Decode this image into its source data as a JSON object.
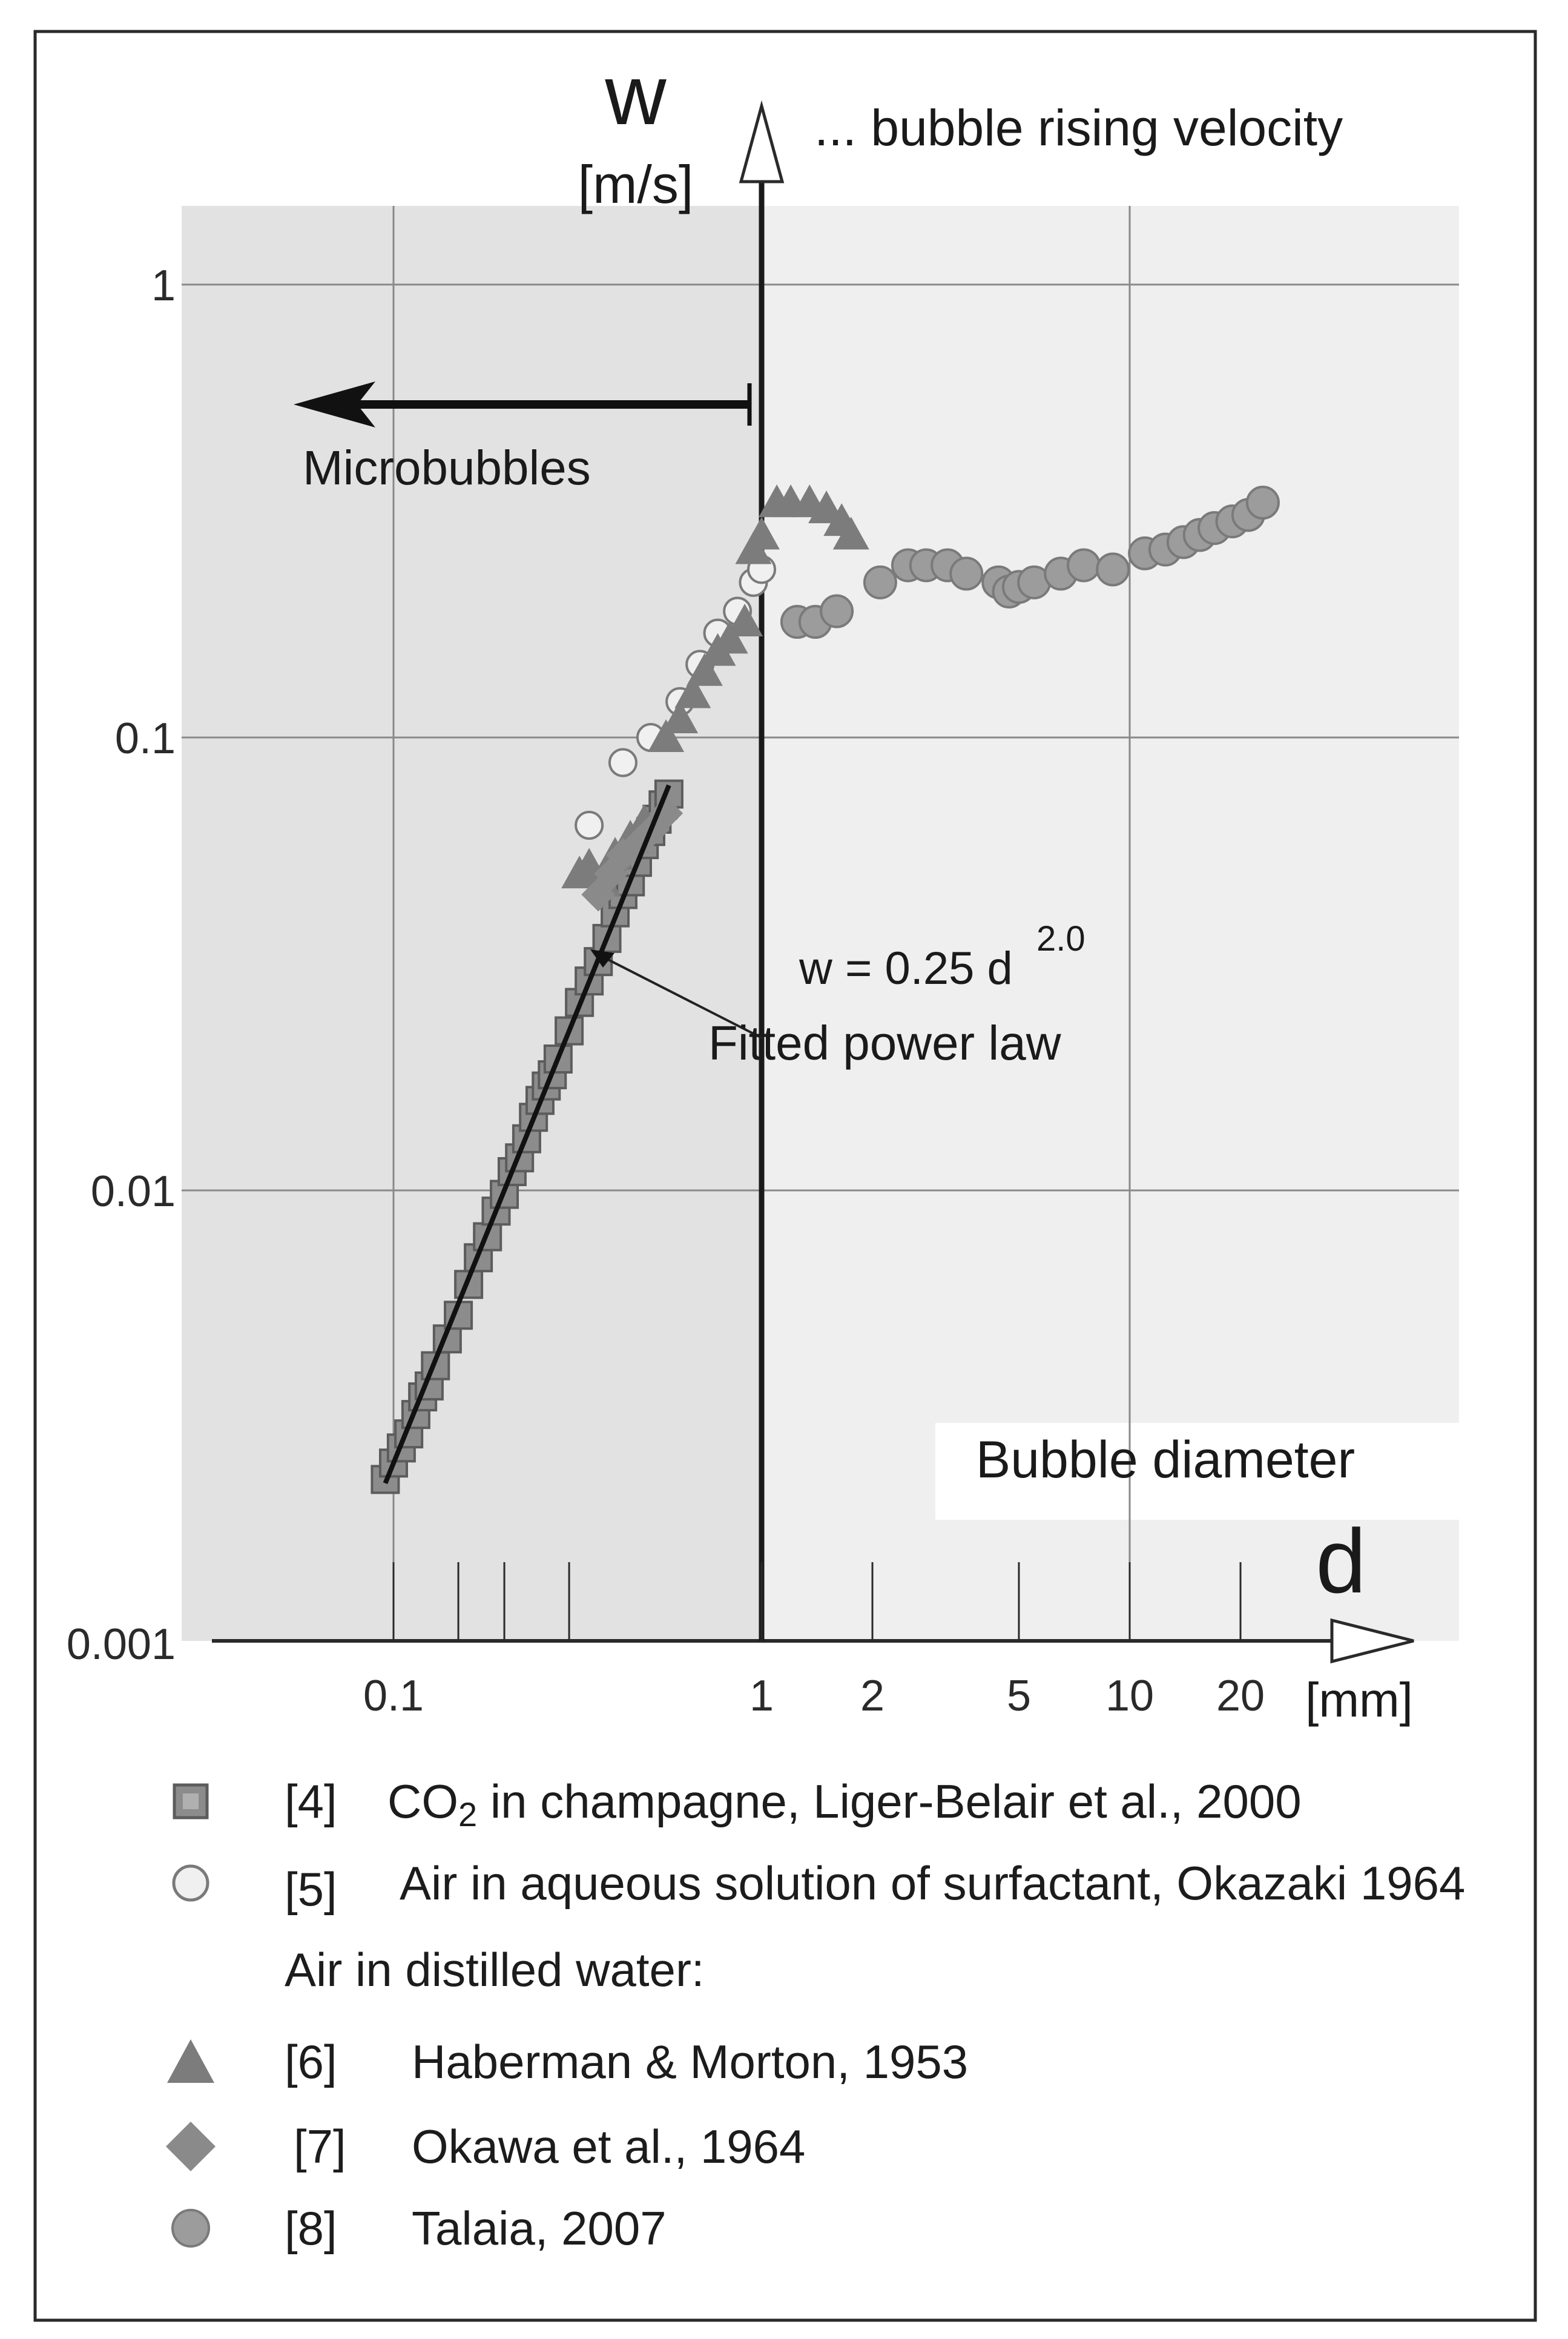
{
  "chart_data": {
    "type": "scatter",
    "x_scale": "log",
    "y_scale": "log",
    "xlim": [
      0.04,
      30
    ],
    "ylim": [
      0.001,
      2
    ],
    "y_axis": {
      "symbol": "w",
      "unit": "[m/s]",
      "description": "... bubble rising velocity",
      "tick_labels": [
        "1",
        "0.1",
        "0.01",
        "0.001"
      ],
      "tick_values": [
        1,
        0.1,
        0.01,
        0.001
      ]
    },
    "x_axis": {
      "symbol": "d",
      "unit": "[mm]",
      "description": "Bubble diameter",
      "tick_labels": [
        "0.1",
        "1",
        "2",
        "5",
        "10",
        "20"
      ],
      "tick_values": [
        0.1,
        1,
        2,
        5,
        10,
        20
      ]
    },
    "grid": true,
    "regions": [
      {
        "label": "Microbubbles",
        "x_range": [
          0.04,
          1
        ]
      }
    ],
    "fit": {
      "label": "Fitted power law",
      "equation": "w = 0.25 d",
      "exponent": "2.0",
      "coefficient": 0.25,
      "power": 2.0,
      "x_range": [
        0.095,
        0.56
      ]
    },
    "series": [
      {
        "key": "s4",
        "marker": "square",
        "color": "#8c8c8c",
        "x": [
          0.095,
          0.1,
          0.105,
          0.11,
          0.115,
          0.12,
          0.125,
          0.13,
          0.14,
          0.15,
          0.16,
          0.17,
          0.18,
          0.19,
          0.2,
          0.21,
          0.22,
          0.23,
          0.24,
          0.25,
          0.26,
          0.27,
          0.28,
          0.3,
          0.32,
          0.34,
          0.36,
          0.38,
          0.4,
          0.42,
          0.44,
          0.46,
          0.48,
          0.5,
          0.52,
          0.54,
          0.56
        ],
        "y": [
          0.0023,
          0.0025,
          0.0027,
          0.0029,
          0.0032,
          0.0035,
          0.0037,
          0.0041,
          0.0047,
          0.0053,
          0.0062,
          0.0071,
          0.0079,
          0.009,
          0.0098,
          0.011,
          0.0118,
          0.013,
          0.0145,
          0.0158,
          0.017,
          0.018,
          0.0195,
          0.0225,
          0.026,
          0.029,
          0.032,
          0.036,
          0.041,
          0.045,
          0.048,
          0.053,
          0.058,
          0.062,
          0.066,
          0.071,
          0.075
        ]
      },
      {
        "key": "s5",
        "marker": "circle-open",
        "color": "#f0f0f0",
        "x": [
          0.34,
          0.42,
          0.5,
          0.6,
          0.68,
          0.76,
          0.86,
          0.95,
          1.0
        ],
        "y": [
          0.064,
          0.088,
          0.1,
          0.12,
          0.145,
          0.17,
          0.19,
          0.22,
          0.235
        ]
      },
      {
        "key": "s6",
        "marker": "triangle",
        "color": "#7c7c7c",
        "x": [
          0.32,
          0.34,
          0.37,
          0.4,
          0.44,
          0.48,
          0.55,
          0.6,
          0.65,
          0.7,
          0.76,
          0.82,
          0.9,
          0.95,
          1.0,
          1.1,
          1.2,
          1.35,
          1.5,
          1.65,
          1.75
        ],
        "y": [
          0.05,
          0.052,
          0.048,
          0.055,
          0.06,
          0.065,
          0.1,
          0.11,
          0.125,
          0.14,
          0.155,
          0.165,
          0.18,
          0.26,
          0.28,
          0.33,
          0.33,
          0.33,
          0.32,
          0.3,
          0.28
        ]
      },
      {
        "key": "s7",
        "marker": "diamond",
        "color": "#8a8a8a",
        "x": [
          0.36,
          0.39,
          0.42,
          0.46,
          0.5,
          0.55
        ],
        "y": [
          0.045,
          0.05,
          0.055,
          0.058,
          0.062,
          0.068
        ]
      },
      {
        "key": "s8",
        "marker": "circle",
        "color": "#9c9c9c",
        "x": [
          1.25,
          1.4,
          1.6,
          2.1,
          2.5,
          2.8,
          3.2,
          3.6,
          4.4,
          4.7,
          5.0,
          5.5,
          6.5,
          7.5,
          9.0,
          11.0,
          12.5,
          14.0,
          15.5,
          17.0,
          19.0,
          21.0,
          23.0
        ],
        "y": [
          0.18,
          0.18,
          0.19,
          0.22,
          0.24,
          0.24,
          0.24,
          0.23,
          0.22,
          0.21,
          0.215,
          0.22,
          0.23,
          0.24,
          0.235,
          0.255,
          0.26,
          0.27,
          0.28,
          0.29,
          0.3,
          0.31,
          0.33
        ]
      }
    ]
  },
  "legend": {
    "s4": {
      "ref": "[4]",
      "pre": "CO",
      "sub": "2",
      "post": " in champagne, Liger-Belair et al., 2000"
    },
    "s5": {
      "ref": "[5]",
      "text": "Air in aqueous solution of surfactant, Okazaki 1964"
    },
    "group_header": "Air in distilled water:",
    "s6": {
      "ref": "[6]",
      "text": "Haberman & Morton, 1953"
    },
    "s7": {
      "ref": "[7]",
      "text": "Okawa et al., 1964"
    },
    "s8": {
      "ref": "[8]",
      "text": "Talaia, 2007"
    }
  }
}
